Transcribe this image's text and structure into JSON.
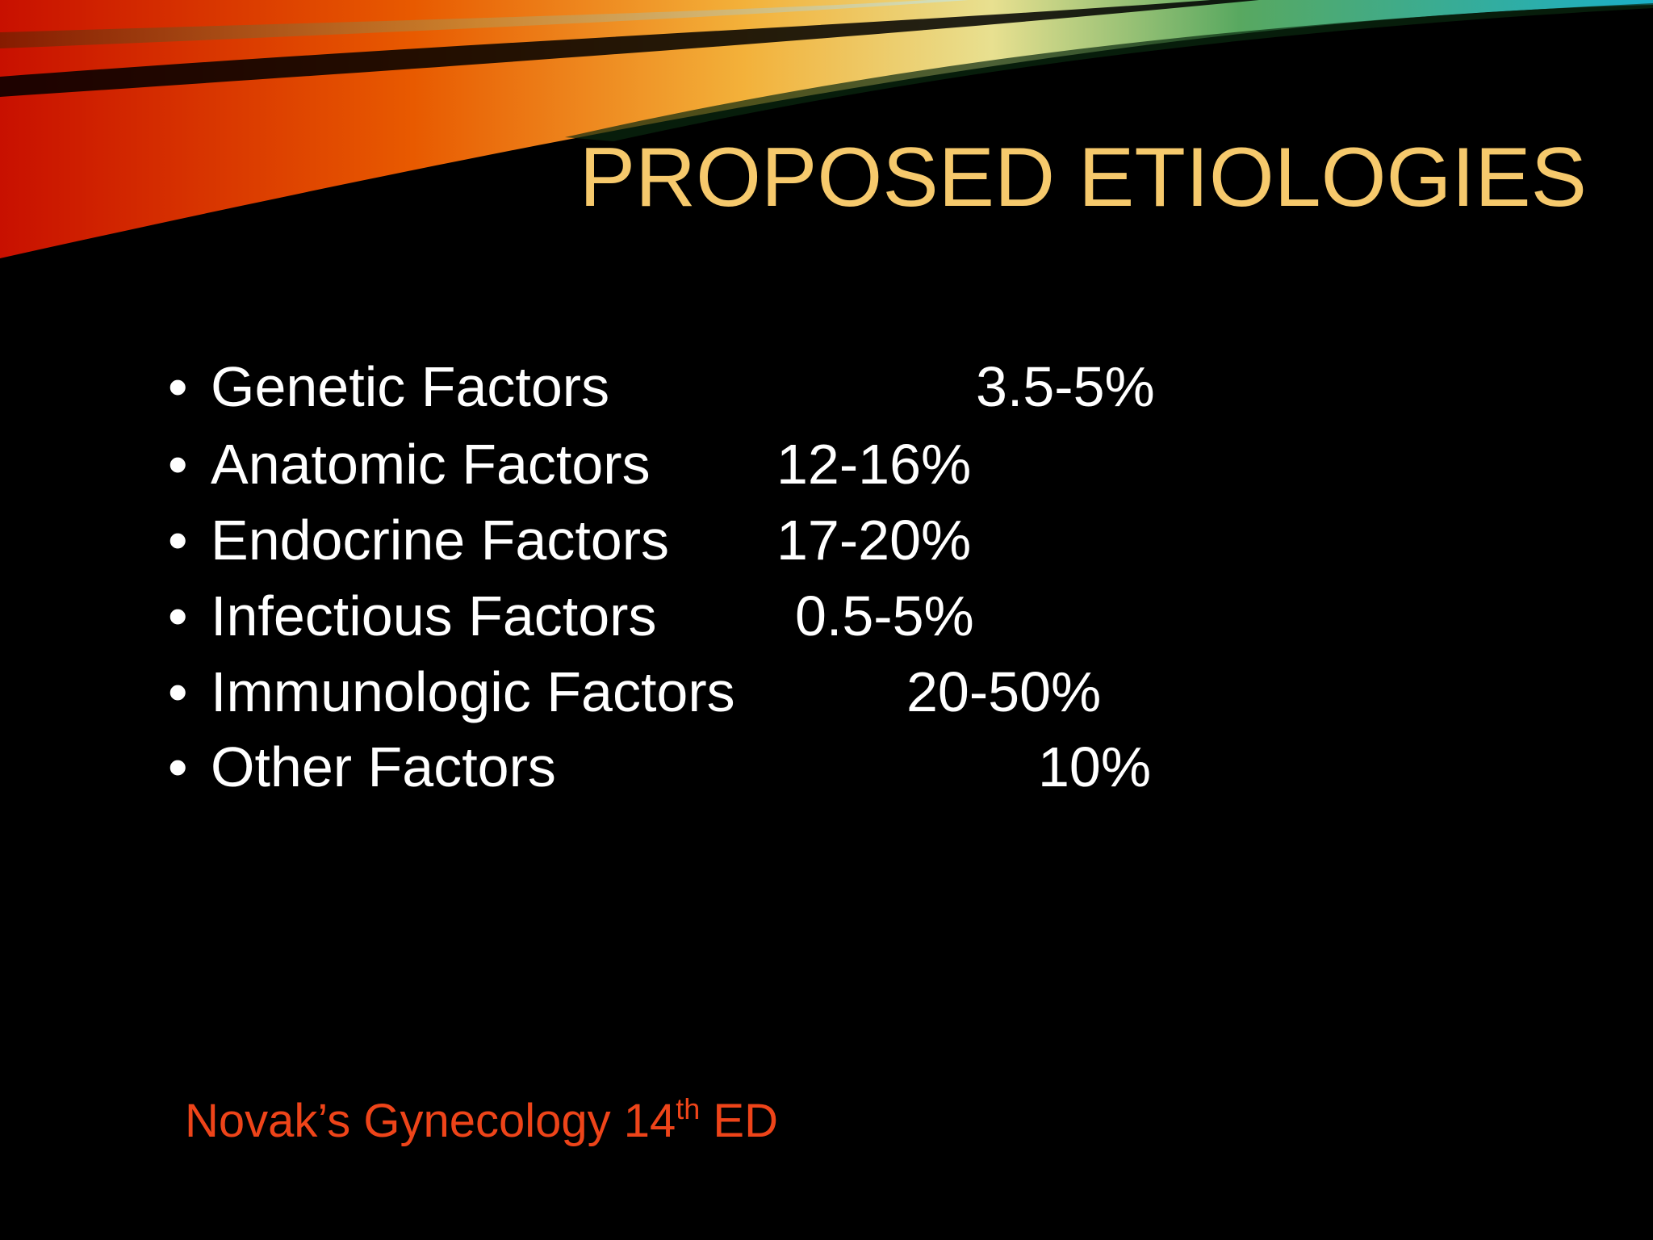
{
  "title": "PROPOSED ETIOLOGIES",
  "items": [
    {
      "label": "Genetic Factors",
      "value": "3.5-5%"
    },
    {
      "label": "Anatomic Factors",
      "value": "12-16%"
    },
    {
      "label": "Endocrine Factors",
      "value": "17-20%"
    },
    {
      "label": "Infectious Factors",
      "value": "0.5-5%"
    },
    {
      "label": "Immunologic Factors",
      "value": "20-50%"
    },
    {
      "label": "Other Factors",
      "value": "10%"
    }
  ],
  "source": {
    "text": "Novak’s Gynecology 14",
    "sup": "th",
    "suffix": " ED"
  }
}
